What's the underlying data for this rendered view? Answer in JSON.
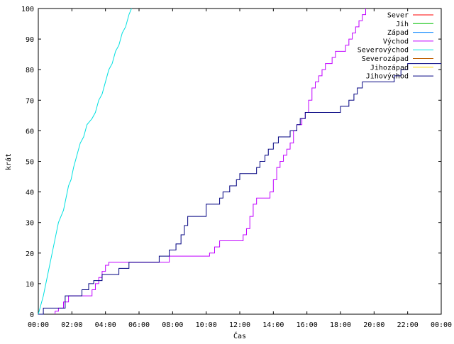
{
  "chart_data": {
    "type": "line",
    "xlabel": "Čas",
    "ylabel": "krát",
    "xlim": [
      0,
      24
    ],
    "ylim": [
      0,
      100
    ],
    "x_tick_values": [
      0,
      2,
      4,
      6,
      8,
      10,
      12,
      14,
      16,
      18,
      20,
      22,
      24
    ],
    "x_tick_labels": [
      "00:00",
      "02:00",
      "04:00",
      "06:00",
      "08:00",
      "10:00",
      "12:00",
      "14:00",
      "16:00",
      "18:00",
      "20:00",
      "22:00",
      "00:00"
    ],
    "y_tick_values": [
      0,
      10,
      20,
      30,
      40,
      50,
      60,
      70,
      80,
      90,
      100
    ],
    "y_tick_labels": [
      "0",
      "10",
      "20",
      "30",
      "40",
      "50",
      "60",
      "70",
      "80",
      "90",
      "100"
    ],
    "grid": false,
    "legend_position": "top-right",
    "series": [
      {
        "name": "Sever",
        "color": "#ff0000",
        "points": []
      },
      {
        "name": "Jih",
        "color": "#00c000",
        "points": []
      },
      {
        "name": "Západ",
        "color": "#0080ff",
        "points": []
      },
      {
        "name": "Východ",
        "color": "#c000ff",
        "points": [
          [
            1.0,
            0
          ],
          [
            1.0,
            1
          ],
          [
            1.2,
            1
          ],
          [
            1.2,
            2
          ],
          [
            1.5,
            2
          ],
          [
            1.5,
            4
          ],
          [
            1.8,
            4
          ],
          [
            1.8,
            6
          ],
          [
            3.2,
            6
          ],
          [
            3.2,
            8
          ],
          [
            3.4,
            8
          ],
          [
            3.4,
            10
          ],
          [
            3.6,
            10
          ],
          [
            3.6,
            12
          ],
          [
            3.8,
            12
          ],
          [
            3.8,
            14
          ],
          [
            4.0,
            14
          ],
          [
            4.0,
            16
          ],
          [
            4.2,
            16
          ],
          [
            4.2,
            17
          ],
          [
            7.8,
            17
          ],
          [
            7.8,
            19
          ],
          [
            10.2,
            19
          ],
          [
            10.2,
            20
          ],
          [
            10.5,
            20
          ],
          [
            10.5,
            22
          ],
          [
            10.8,
            22
          ],
          [
            10.8,
            24
          ],
          [
            12.2,
            24
          ],
          [
            12.2,
            26
          ],
          [
            12.4,
            26
          ],
          [
            12.4,
            28
          ],
          [
            12.6,
            28
          ],
          [
            12.6,
            32
          ],
          [
            12.8,
            32
          ],
          [
            12.8,
            36
          ],
          [
            13.0,
            36
          ],
          [
            13.0,
            38
          ],
          [
            13.8,
            38
          ],
          [
            13.8,
            40
          ],
          [
            14.0,
            40
          ],
          [
            14.0,
            44
          ],
          [
            14.2,
            44
          ],
          [
            14.2,
            48
          ],
          [
            14.4,
            48
          ],
          [
            14.4,
            50
          ],
          [
            14.6,
            50
          ],
          [
            14.6,
            52
          ],
          [
            14.8,
            52
          ],
          [
            14.8,
            54
          ],
          [
            15.0,
            54
          ],
          [
            15.0,
            56
          ],
          [
            15.2,
            56
          ],
          [
            15.2,
            60
          ],
          [
            15.4,
            60
          ],
          [
            15.4,
            62
          ],
          [
            15.7,
            62
          ],
          [
            15.7,
            64
          ],
          [
            15.9,
            64
          ],
          [
            15.9,
            66
          ],
          [
            16.1,
            66
          ],
          [
            16.1,
            70
          ],
          [
            16.3,
            70
          ],
          [
            16.3,
            74
          ],
          [
            16.5,
            74
          ],
          [
            16.5,
            76
          ],
          [
            16.7,
            76
          ],
          [
            16.7,
            78
          ],
          [
            16.9,
            78
          ],
          [
            16.9,
            80
          ],
          [
            17.1,
            80
          ],
          [
            17.1,
            82
          ],
          [
            17.5,
            82
          ],
          [
            17.5,
            84
          ],
          [
            17.7,
            84
          ],
          [
            17.7,
            86
          ],
          [
            18.3,
            86
          ],
          [
            18.3,
            88
          ],
          [
            18.5,
            88
          ],
          [
            18.5,
            90
          ],
          [
            18.7,
            90
          ],
          [
            18.7,
            92
          ],
          [
            18.9,
            92
          ],
          [
            18.9,
            94
          ],
          [
            19.1,
            94
          ],
          [
            19.1,
            96
          ],
          [
            19.3,
            96
          ],
          [
            19.3,
            98
          ],
          [
            19.5,
            98
          ],
          [
            19.5,
            100
          ]
        ]
      },
      {
        "name": "Severovýchod",
        "color": "#00e0e0",
        "points": [
          [
            0.0,
            0
          ],
          [
            0.1,
            2
          ],
          [
            0.2,
            4
          ],
          [
            0.3,
            6
          ],
          [
            0.45,
            10
          ],
          [
            0.6,
            14
          ],
          [
            0.75,
            18
          ],
          [
            0.9,
            22
          ],
          [
            1.05,
            26
          ],
          [
            1.2,
            30
          ],
          [
            1.35,
            32
          ],
          [
            1.5,
            34
          ],
          [
            1.65,
            38
          ],
          [
            1.8,
            42
          ],
          [
            1.95,
            44
          ],
          [
            2.1,
            48
          ],
          [
            2.3,
            52
          ],
          [
            2.5,
            56
          ],
          [
            2.7,
            58
          ],
          [
            2.9,
            62
          ],
          [
            3.2,
            64
          ],
          [
            3.4,
            66
          ],
          [
            3.6,
            70
          ],
          [
            3.8,
            72
          ],
          [
            4.0,
            76
          ],
          [
            4.2,
            80
          ],
          [
            4.4,
            82
          ],
          [
            4.6,
            86
          ],
          [
            4.8,
            88
          ],
          [
            5.0,
            92
          ],
          [
            5.2,
            94
          ],
          [
            5.4,
            98
          ],
          [
            5.55,
            100
          ]
        ]
      },
      {
        "name": "Severozápad",
        "color": "#c06000",
        "points": []
      },
      {
        "name": "Jihozápad",
        "color": "#ffd700",
        "points": []
      },
      {
        "name": "Jihovýchod",
        "color": "#000080",
        "points": [
          [
            0.0,
            0
          ],
          [
            0.3,
            0
          ],
          [
            0.3,
            2
          ],
          [
            1.6,
            2
          ],
          [
            1.6,
            6
          ],
          [
            2.6,
            6
          ],
          [
            2.6,
            8
          ],
          [
            3.0,
            8
          ],
          [
            3.0,
            10
          ],
          [
            3.3,
            10
          ],
          [
            3.3,
            11
          ],
          [
            3.8,
            11
          ],
          [
            3.8,
            13
          ],
          [
            4.8,
            13
          ],
          [
            4.8,
            15
          ],
          [
            5.4,
            15
          ],
          [
            5.4,
            17
          ],
          [
            7.2,
            17
          ],
          [
            7.2,
            19
          ],
          [
            7.8,
            19
          ],
          [
            7.8,
            21
          ],
          [
            8.2,
            21
          ],
          [
            8.2,
            23
          ],
          [
            8.5,
            23
          ],
          [
            8.5,
            26
          ],
          [
            8.7,
            26
          ],
          [
            8.7,
            29
          ],
          [
            8.9,
            29
          ],
          [
            8.9,
            32
          ],
          [
            10.0,
            32
          ],
          [
            10.0,
            36
          ],
          [
            10.8,
            36
          ],
          [
            10.8,
            38
          ],
          [
            11.0,
            38
          ],
          [
            11.0,
            40
          ],
          [
            11.4,
            40
          ],
          [
            11.4,
            42
          ],
          [
            11.8,
            42
          ],
          [
            11.8,
            44
          ],
          [
            12.0,
            44
          ],
          [
            12.0,
            46
          ],
          [
            13.0,
            46
          ],
          [
            13.0,
            48
          ],
          [
            13.2,
            48
          ],
          [
            13.2,
            50
          ],
          [
            13.5,
            50
          ],
          [
            13.5,
            52
          ],
          [
            13.7,
            52
          ],
          [
            13.7,
            54
          ],
          [
            14.0,
            54
          ],
          [
            14.0,
            56
          ],
          [
            14.3,
            56
          ],
          [
            14.3,
            58
          ],
          [
            15.0,
            58
          ],
          [
            15.0,
            60
          ],
          [
            15.4,
            60
          ],
          [
            15.4,
            62
          ],
          [
            15.6,
            62
          ],
          [
            15.6,
            64
          ],
          [
            15.9,
            64
          ],
          [
            15.9,
            66
          ],
          [
            18.0,
            66
          ],
          [
            18.0,
            68
          ],
          [
            18.5,
            68
          ],
          [
            18.5,
            70
          ],
          [
            18.8,
            70
          ],
          [
            18.8,
            72
          ],
          [
            19.0,
            72
          ],
          [
            19.0,
            74
          ],
          [
            19.3,
            74
          ],
          [
            19.3,
            76
          ],
          [
            21.2,
            76
          ],
          [
            21.2,
            78
          ],
          [
            21.6,
            78
          ],
          [
            21.6,
            80
          ],
          [
            22.0,
            80
          ],
          [
            22.0,
            82
          ],
          [
            24.0,
            82
          ]
        ]
      }
    ]
  }
}
